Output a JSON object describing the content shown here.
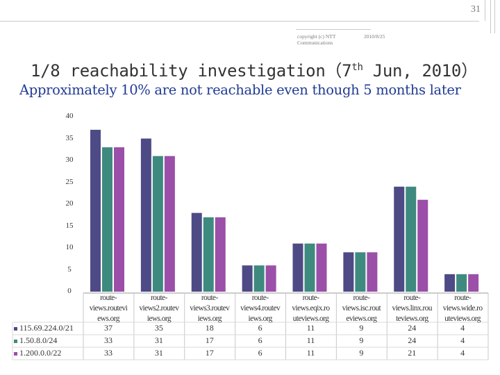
{
  "slide": {
    "page_number": "31",
    "copyright": "copyright (c) NTT Communications",
    "copyright_line1": "copyright (c) NTT",
    "copyright_line2": "Communications",
    "date": "2010/8/25",
    "title_main": "1/8 reachability investigation（7",
    "title_sup": "th",
    "title_end": " Jun, 2010）",
    "subtitle": "Approximately 10% are not reachable even though 5 months later"
  },
  "colors": {
    "series": [
      "#4e4a85",
      "#3f8a7f",
      "#9b4fa8"
    ],
    "grid": "#999999",
    "text": "#333333",
    "title": "#333333",
    "subtitle": "#1f3a93"
  },
  "chart_data": {
    "type": "bar",
    "title": "",
    "xlabel": "",
    "ylabel": "",
    "ylim": [
      0,
      40
    ],
    "yticks": [
      "0",
      "5",
      "10",
      "15",
      "20",
      "25",
      "30",
      "35",
      "40"
    ],
    "categories": [
      "route-views.routeviews.org",
      "route-views2.routeviews.org",
      "route-views3.routeviews.org",
      "route-views4.routeviews.org",
      "route-views.eqix.routeviews.org",
      "route-views.isc.routeviews.org",
      "route-views.linx.routeviews.org",
      "route-views.wide.routeviews.org"
    ],
    "category_lines": [
      [
        "route-",
        "views.routevi",
        "ews.org"
      ],
      [
        "route-",
        "views2.routev",
        "iews.org"
      ],
      [
        "route-",
        "views3.routev",
        "iews.org"
      ],
      [
        "route-",
        "views4.routev",
        "iews.org"
      ],
      [
        "route-",
        "views.eqix.ro",
        "uteviews.org"
      ],
      [
        "route-",
        "views.isc.rout",
        "eviews.org"
      ],
      [
        "route-",
        "views.linx.rou",
        "teviews.org"
      ],
      [
        "route-",
        "views.wide.ro",
        "uteviews.org"
      ]
    ],
    "series": [
      {
        "name": "115.69.224.0/21",
        "values": [
          37,
          35,
          18,
          6,
          11,
          9,
          24,
          4
        ]
      },
      {
        "name": "1.50.8.0/24",
        "values": [
          33,
          31,
          17,
          6,
          11,
          9,
          24,
          4
        ]
      },
      {
        "name": "1.200.0.0/22",
        "values": [
          33,
          31,
          17,
          6,
          11,
          9,
          21,
          4
        ]
      }
    ],
    "table_values": [
      [
        "37",
        "35",
        "18",
        "6",
        "11",
        "9",
        "24",
        "4"
      ],
      [
        "33",
        "31",
        "17",
        "6",
        "11",
        "9",
        "24",
        "4"
      ],
      [
        "33",
        "31",
        "17",
        "6",
        "11",
        "9",
        "21",
        "4"
      ]
    ],
    "legend": "bottom-left data table",
    "grid": false
  }
}
